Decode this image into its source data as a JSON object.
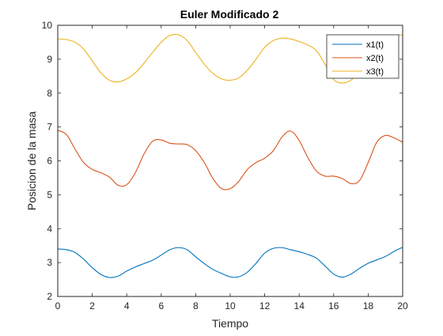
{
  "chart_data": {
    "type": "line",
    "title": "Euler Modificado 2",
    "xlabel": "Tiempo",
    "ylabel": "Posicion de la masa",
    "xlim": [
      0,
      20
    ],
    "ylim": [
      2,
      10
    ],
    "xticks": [
      0,
      2,
      4,
      6,
      8,
      10,
      12,
      14,
      16,
      18,
      20
    ],
    "yticks": [
      2,
      3,
      4,
      5,
      6,
      7,
      8,
      9,
      10
    ],
    "grid": false,
    "legend_position": "top-right",
    "x": [
      0,
      0.5,
      1,
      1.5,
      2,
      2.5,
      3,
      3.5,
      4,
      4.5,
      5,
      5.5,
      6,
      6.5,
      7,
      7.5,
      8,
      8.5,
      9,
      9.5,
      10,
      10.5,
      11,
      11.5,
      12,
      12.5,
      13,
      13.5,
      14,
      14.5,
      15,
      15.5,
      16,
      16.5,
      17,
      17.5,
      18,
      18.5,
      19,
      19.5,
      20
    ],
    "series": [
      {
        "name": "x1(t)",
        "color": "#0072BD",
        "values": [
          3.4,
          3.38,
          3.3,
          3.1,
          2.85,
          2.65,
          2.56,
          2.6,
          2.75,
          2.87,
          2.97,
          3.07,
          3.22,
          3.38,
          3.44,
          3.38,
          3.17,
          2.97,
          2.8,
          2.68,
          2.58,
          2.58,
          2.72,
          2.98,
          3.28,
          3.42,
          3.44,
          3.38,
          3.32,
          3.24,
          3.13,
          2.9,
          2.66,
          2.57,
          2.66,
          2.83,
          2.98,
          3.08,
          3.18,
          3.33,
          3.45
        ]
      },
      {
        "name": "x2(t)",
        "color": "#D95319",
        "values": [
          6.9,
          6.78,
          6.35,
          5.95,
          5.75,
          5.65,
          5.52,
          5.28,
          5.3,
          5.65,
          6.2,
          6.58,
          6.62,
          6.52,
          6.5,
          6.48,
          6.3,
          5.95,
          5.48,
          5.18,
          5.18,
          5.4,
          5.75,
          5.95,
          6.08,
          6.3,
          6.7,
          6.88,
          6.6,
          6.1,
          5.7,
          5.55,
          5.55,
          5.48,
          5.33,
          5.42,
          5.95,
          6.55,
          6.75,
          6.68,
          6.55
        ]
      },
      {
        "name": "x3(t)",
        "color": "#EDB120",
        "values": [
          9.6,
          9.58,
          9.5,
          9.3,
          8.95,
          8.6,
          8.38,
          8.33,
          8.42,
          8.6,
          8.88,
          9.2,
          9.5,
          9.7,
          9.72,
          9.55,
          9.2,
          8.85,
          8.58,
          8.42,
          8.38,
          8.45,
          8.68,
          9.0,
          9.35,
          9.55,
          9.62,
          9.6,
          9.52,
          9.42,
          9.25,
          8.85,
          8.4,
          8.3,
          8.38,
          8.65,
          9.0,
          9.35,
          9.6,
          9.7,
          9.72
        ]
      }
    ]
  }
}
